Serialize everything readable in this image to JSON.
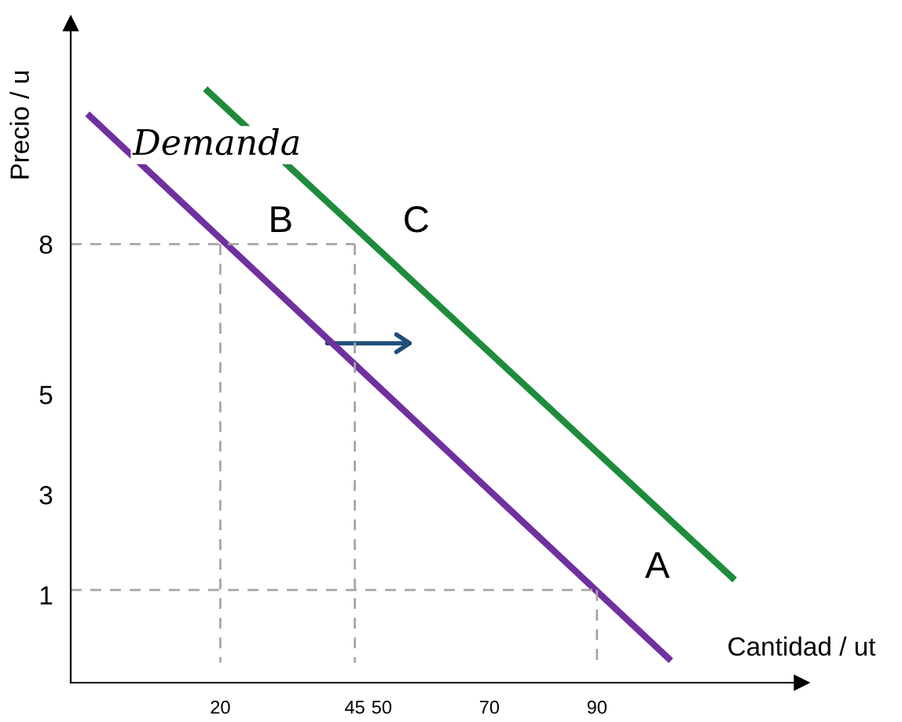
{
  "chart_data": {
    "type": "line",
    "xlabel": "Cantidad / ut",
    "ylabel": "Precio / u",
    "xlim": [
      -7.8,
      128
    ],
    "ylim": [
      -0.75,
      12.4
    ],
    "xticks": [
      20,
      45,
      50,
      70,
      90
    ],
    "yticks": [
      1,
      3,
      5,
      8
    ],
    "grid": false,
    "marker": "none",
    "series": [
      {
        "color": "#7030a0",
        "x": [
          -4.7,
          103.75
        ],
        "values": [
          10.6,
          -0.31
        ],
        "line_style": "solid"
      },
      {
        "color": "#1e8c3c",
        "x": [
          17.2,
          115.6
        ],
        "values": [
          11.1,
          1.3
        ],
        "line_style": "solid"
      },
      {
        "color": "#a6a6a6",
        "x": [
          -7.8,
          45
        ],
        "values": [
          8,
          8
        ],
        "line_style": "dashed"
      },
      {
        "color": "#a6a6a6",
        "x": [
          20,
          20
        ],
        "values": [
          8,
          -0.35
        ],
        "line_style": "dashed"
      },
      {
        "color": "#a6a6a6",
        "x": [
          45,
          45
        ],
        "values": [
          8,
          -0.35
        ],
        "line_style": "dashed"
      },
      {
        "color": "#a6a6a6",
        "x": [
          -7.8,
          90
        ],
        "values": [
          1.1,
          1.1
        ],
        "line_style": "dashed"
      },
      {
        "color": "#a6a6a6",
        "x": [
          90,
          90
        ],
        "values": [
          1.1,
          -0.35
        ],
        "line_style": "dashed"
      }
    ],
    "annotations": [
      "Demanda",
      {
        "text": "B",
        "x": 20,
        "y": 8
      },
      {
        "text": "C",
        "x": 45,
        "y": 8
      },
      {
        "text": "A",
        "x": 90,
        "y": 1.1
      }
    ]
  }
}
